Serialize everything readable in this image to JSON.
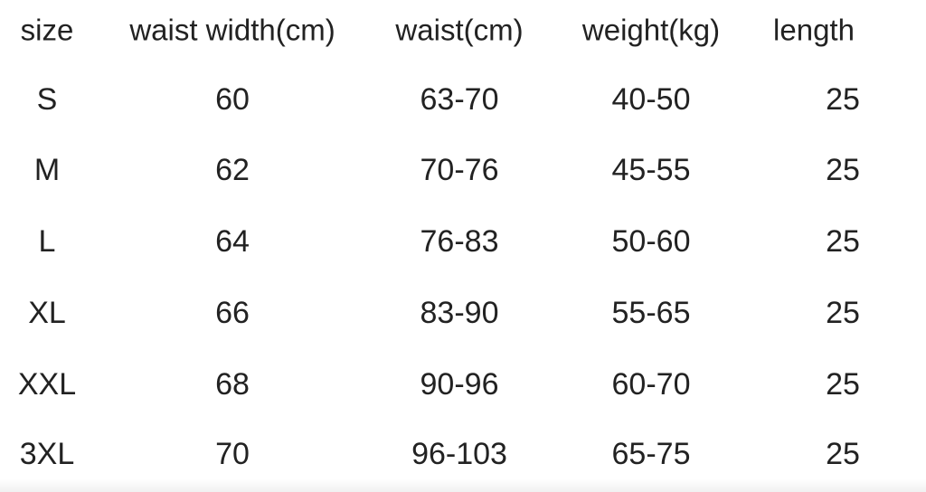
{
  "table": {
    "header": [
      "size",
      "waist width(cm)",
      "waist(cm)",
      "weight(kg)",
      "length"
    ],
    "rows": [
      [
        "S",
        "60",
        "63-70",
        "40-50",
        "25"
      ],
      [
        "M",
        "62",
        "70-76",
        "45-55",
        "25"
      ],
      [
        "L",
        "64",
        "76-83",
        "50-60",
        "25"
      ],
      [
        "XL",
        "66",
        "83-90",
        "55-65",
        "25"
      ],
      [
        "XXL",
        "68",
        "90-96",
        "60-70",
        "25"
      ],
      [
        "3XL",
        "70",
        "96-103",
        "65-75",
        "25"
      ]
    ]
  }
}
